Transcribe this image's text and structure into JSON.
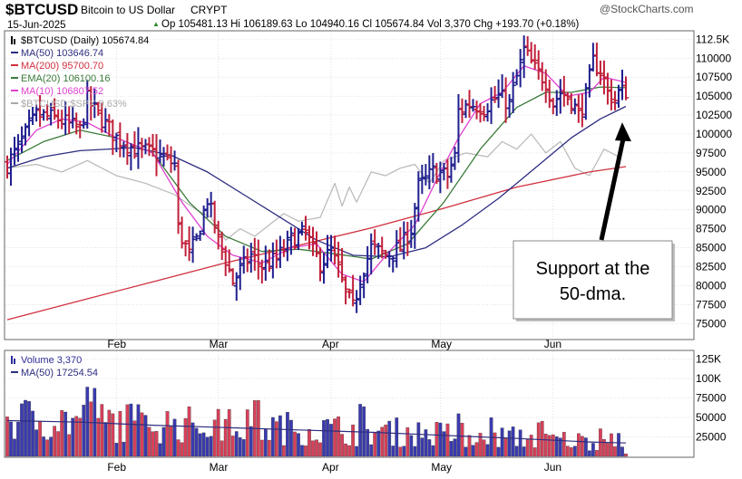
{
  "chart_data": {
    "type": "line",
    "header": {
      "symbol": "$BTCUSD",
      "description": "Bitcoin to US Dollar",
      "exchange": "CRYPT",
      "brand": "@StockCharts.com",
      "date": "15-Jun-2025",
      "ohlc_text": "Op 105481.13 Hi 106189.63 Lo 104940.16 Cl 105674.84 Vol 3,370 Chg +193.70 (+0.18%)",
      "ohlc_arrow": "▲"
    },
    "price_legend": [
      {
        "label": "$BTCUSD (Daily) 105674.84",
        "color": "#000000",
        "marker": "bar"
      },
      {
        "label": "MA(50) 103646.74",
        "color": "#2d2d80",
        "marker": "line"
      },
      {
        "label": "MA(200) 95700.70",
        "color": "#d03040",
        "marker": "line"
      },
      {
        "label": "EMA(20) 106100.16",
        "color": "#3a7a3a",
        "marker": "line"
      },
      {
        "label": "MA(10) 106807.52",
        "color": "#e040d0",
        "marker": "line"
      },
      {
        "label": "$BTCUSD:$SPX 9.63%",
        "color": "#a8a8a8",
        "marker": "line"
      }
    ],
    "volume_legend": [
      {
        "label": "Volume 3,370",
        "color": "#2d2d9a",
        "marker": "bar"
      },
      {
        "label": "MA(50) 17254.54",
        "color": "#2d2d80",
        "marker": "line"
      }
    ],
    "price_axis": {
      "ticks": [
        75000,
        77500,
        80000,
        82500,
        85000,
        87500,
        90000,
        92500,
        95000,
        97500,
        100000,
        102500,
        105000,
        107500,
        110000,
        112500
      ],
      "tick_labels": [
        "75000",
        "77500",
        "80000",
        "82500",
        "85000",
        "87500",
        "90000",
        "92500",
        "95000",
        "97500",
        "100000",
        "102500",
        "105000",
        "107500",
        "110000",
        "112.5K"
      ],
      "range": [
        73000,
        113500
      ]
    },
    "volume_axis": {
      "ticks": [
        25000,
        50000,
        75000,
        100000,
        125000
      ],
      "tick_labels": [
        "25000",
        "50000",
        "75000",
        "100K",
        "125K"
      ],
      "range": [
        0,
        135000
      ]
    },
    "x_axis": {
      "range_days": [
        0,
        170
      ],
      "months": [
        {
          "label": "Feb",
          "day": 30
        },
        {
          "label": "Mar",
          "day": 58
        },
        {
          "label": "Apr",
          "day": 89
        },
        {
          "label": "May",
          "day": 119
        },
        {
          "label": "Jun",
          "day": 150
        }
      ]
    },
    "anchors": [
      {
        "d": 0,
        "c": 96000
      },
      {
        "d": 4,
        "c": 99000
      },
      {
        "d": 8,
        "c": 102500
      },
      {
        "d": 14,
        "c": 102000
      },
      {
        "d": 20,
        "c": 100500
      },
      {
        "d": 22,
        "c": 104500
      },
      {
        "d": 25,
        "c": 102500
      },
      {
        "d": 30,
        "c": 99500
      },
      {
        "d": 35,
        "c": 98000
      },
      {
        "d": 40,
        "c": 97500
      },
      {
        "d": 46,
        "c": 96000
      },
      {
        "d": 47,
        "c": 87500
      },
      {
        "d": 50,
        "c": 84000
      },
      {
        "d": 52,
        "c": 86000
      },
      {
        "d": 55,
        "c": 91500
      },
      {
        "d": 58,
        "c": 86000
      },
      {
        "d": 60,
        "c": 83500
      },
      {
        "d": 62,
        "c": 80500
      },
      {
        "d": 64,
        "c": 82000
      },
      {
        "d": 67,
        "c": 84000
      },
      {
        "d": 70,
        "c": 82500
      },
      {
        "d": 74,
        "c": 83500
      },
      {
        "d": 78,
        "c": 86000
      },
      {
        "d": 82,
        "c": 87000
      },
      {
        "d": 84,
        "c": 84500
      },
      {
        "d": 86,
        "c": 83000
      },
      {
        "d": 89,
        "c": 84500
      },
      {
        "d": 91,
        "c": 82000
      },
      {
        "d": 93,
        "c": 79000
      },
      {
        "d": 95,
        "c": 77000
      },
      {
        "d": 97,
        "c": 81000
      },
      {
        "d": 100,
        "c": 85000
      },
      {
        "d": 104,
        "c": 84000
      },
      {
        "d": 108,
        "c": 85000
      },
      {
        "d": 111,
        "c": 87500
      },
      {
        "d": 113,
        "c": 93000
      },
      {
        "d": 117,
        "c": 95000
      },
      {
        "d": 121,
        "c": 94500
      },
      {
        "d": 123,
        "c": 97000
      },
      {
        "d": 124,
        "c": 103000
      },
      {
        "d": 127,
        "c": 104000
      },
      {
        "d": 131,
        "c": 103500
      },
      {
        "d": 135,
        "c": 105000
      },
      {
        "d": 138,
        "c": 104000
      },
      {
        "d": 140,
        "c": 107500
      },
      {
        "d": 142,
        "c": 111000
      },
      {
        "d": 145,
        "c": 108500
      },
      {
        "d": 148,
        "c": 107000
      },
      {
        "d": 150,
        "c": 104000
      },
      {
        "d": 152,
        "c": 105500
      },
      {
        "d": 155,
        "c": 104500
      },
      {
        "d": 157,
        "c": 102500
      },
      {
        "d": 159,
        "c": 105000
      },
      {
        "d": 161,
        "c": 109500
      },
      {
        "d": 163,
        "c": 108500
      },
      {
        "d": 165,
        "c": 105500
      },
      {
        "d": 167,
        "c": 104500
      },
      {
        "d": 168,
        "c": 105500
      },
      {
        "d": 170,
        "c": 105674.84
      }
    ],
    "ma50": [
      {
        "d": 0,
        "v": 95500
      },
      {
        "d": 10,
        "v": 97000
      },
      {
        "d": 20,
        "v": 97800
      },
      {
        "d": 35,
        "v": 98200
      },
      {
        "d": 45,
        "v": 97200
      },
      {
        "d": 55,
        "v": 95000
      },
      {
        "d": 65,
        "v": 92000
      },
      {
        "d": 75,
        "v": 89000
      },
      {
        "d": 85,
        "v": 86000
      },
      {
        "d": 95,
        "v": 84000
      },
      {
        "d": 105,
        "v": 83800
      },
      {
        "d": 115,
        "v": 85000
      },
      {
        "d": 125,
        "v": 88000
      },
      {
        "d": 135,
        "v": 91500
      },
      {
        "d": 145,
        "v": 95500
      },
      {
        "d": 155,
        "v": 99500
      },
      {
        "d": 163,
        "v": 102000
      },
      {
        "d": 170,
        "v": 103646.74
      }
    ],
    "ma200": [
      {
        "d": 0,
        "v": 75500
      },
      {
        "d": 20,
        "v": 78000
      },
      {
        "d": 40,
        "v": 80500
      },
      {
        "d": 60,
        "v": 83000
      },
      {
        "d": 80,
        "v": 85300
      },
      {
        "d": 100,
        "v": 87600
      },
      {
        "d": 120,
        "v": 90200
      },
      {
        "d": 140,
        "v": 93000
      },
      {
        "d": 160,
        "v": 95000
      },
      {
        "d": 170,
        "v": 95700.7
      }
    ],
    "ema20": [
      {
        "d": 0,
        "v": 96500
      },
      {
        "d": 10,
        "v": 99000
      },
      {
        "d": 20,
        "v": 100500
      },
      {
        "d": 30,
        "v": 99500
      },
      {
        "d": 40,
        "v": 97500
      },
      {
        "d": 50,
        "v": 91000
      },
      {
        "d": 60,
        "v": 86500
      },
      {
        "d": 70,
        "v": 84500
      },
      {
        "d": 80,
        "v": 84800
      },
      {
        "d": 90,
        "v": 84200
      },
      {
        "d": 100,
        "v": 83500
      },
      {
        "d": 110,
        "v": 85500
      },
      {
        "d": 120,
        "v": 91000
      },
      {
        "d": 130,
        "v": 98000
      },
      {
        "d": 140,
        "v": 103500
      },
      {
        "d": 148,
        "v": 105500
      },
      {
        "d": 155,
        "v": 105500
      },
      {
        "d": 163,
        "v": 106200
      },
      {
        "d": 170,
        "v": 106100.16
      }
    ],
    "ma10": [
      {
        "d": 0,
        "v": 96000
      },
      {
        "d": 8,
        "v": 100500
      },
      {
        "d": 15,
        "v": 102000
      },
      {
        "d": 22,
        "v": 101500
      },
      {
        "d": 30,
        "v": 99500
      },
      {
        "d": 40,
        "v": 97500
      },
      {
        "d": 48,
        "v": 91000
      },
      {
        "d": 55,
        "v": 86500
      },
      {
        "d": 62,
        "v": 84000
      },
      {
        "d": 70,
        "v": 83000
      },
      {
        "d": 78,
        "v": 85000
      },
      {
        "d": 85,
        "v": 85500
      },
      {
        "d": 92,
        "v": 81500
      },
      {
        "d": 98,
        "v": 80500
      },
      {
        "d": 105,
        "v": 84500
      },
      {
        "d": 112,
        "v": 88000
      },
      {
        "d": 118,
        "v": 94000
      },
      {
        "d": 124,
        "v": 99500
      },
      {
        "d": 130,
        "v": 104000
      },
      {
        "d": 136,
        "v": 105500
      },
      {
        "d": 142,
        "v": 109000
      },
      {
        "d": 148,
        "v": 108000
      },
      {
        "d": 154,
        "v": 105000
      },
      {
        "d": 160,
        "v": 105500
      },
      {
        "d": 164,
        "v": 107500
      },
      {
        "d": 170,
        "v": 106807.52
      }
    ],
    "ratio": [
      {
        "d": 0,
        "v": 95500
      },
      {
        "d": 8,
        "v": 96000
      },
      {
        "d": 15,
        "v": 95000
      },
      {
        "d": 22,
        "v": 96500
      },
      {
        "d": 30,
        "v": 94500
      },
      {
        "d": 38,
        "v": 93500
      },
      {
        "d": 46,
        "v": 92000
      },
      {
        "d": 52,
        "v": 90000
      },
      {
        "d": 56,
        "v": 89000
      },
      {
        "d": 60,
        "v": 86000
      },
      {
        "d": 64,
        "v": 87500
      },
      {
        "d": 68,
        "v": 86500
      },
      {
        "d": 72,
        "v": 88000
      },
      {
        "d": 76,
        "v": 89500
      },
      {
        "d": 80,
        "v": 88500
      },
      {
        "d": 86,
        "v": 89000
      },
      {
        "d": 90,
        "v": 93500
      },
      {
        "d": 92,
        "v": 90500
      },
      {
        "d": 94,
        "v": 93000
      },
      {
        "d": 96,
        "v": 91000
      },
      {
        "d": 100,
        "v": 95000
      },
      {
        "d": 104,
        "v": 94500
      },
      {
        "d": 108,
        "v": 95500
      },
      {
        "d": 112,
        "v": 96000
      },
      {
        "d": 116,
        "v": 93500
      },
      {
        "d": 120,
        "v": 96500
      },
      {
        "d": 126,
        "v": 97500
      },
      {
        "d": 132,
        "v": 97000
      },
      {
        "d": 136,
        "v": 99000
      },
      {
        "d": 140,
        "v": 98000
      },
      {
        "d": 144,
        "v": 100000
      },
      {
        "d": 148,
        "v": 97500
      },
      {
        "d": 152,
        "v": 99000
      },
      {
        "d": 156,
        "v": 95500
      },
      {
        "d": 160,
        "v": 94500
      },
      {
        "d": 164,
        "v": 98000
      },
      {
        "d": 168,
        "v": 97000
      }
    ],
    "volume_ma": [
      {
        "d": 0,
        "v": 46000
      },
      {
        "d": 20,
        "v": 44000
      },
      {
        "d": 40,
        "v": 40000
      },
      {
        "d": 60,
        "v": 37000
      },
      {
        "d": 80,
        "v": 34000
      },
      {
        "d": 100,
        "v": 31000
      },
      {
        "d": 120,
        "v": 27000
      },
      {
        "d": 140,
        "v": 23000
      },
      {
        "d": 160,
        "v": 18500
      },
      {
        "d": 170,
        "v": 17254.54
      }
    ],
    "annotation": {
      "text_line1": "Support at the",
      "text_line2": "50-dma.",
      "arrow_target": {
        "d": 167,
        "v": 102500
      }
    }
  }
}
